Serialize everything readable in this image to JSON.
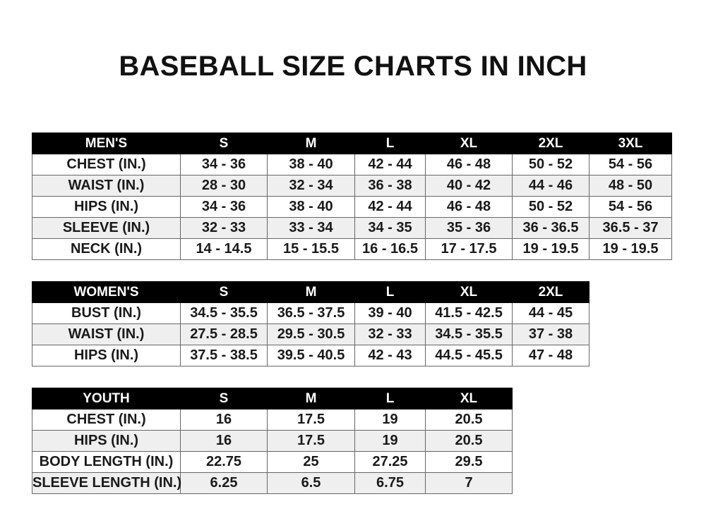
{
  "title": "BASEBALL SIZE CHARTS IN INCH",
  "tables": {
    "men": {
      "headers": [
        "MEN'S",
        "S",
        "M",
        "L",
        "XL",
        "2XL",
        "3XL"
      ],
      "rows": [
        [
          "CHEST (IN.)",
          "34 - 36",
          "38 - 40",
          "42 - 44",
          "46 - 48",
          "50 - 52",
          "54 - 56"
        ],
        [
          "WAIST (IN.)",
          "28 - 30",
          "32 - 34",
          "36 - 38",
          "40 - 42",
          "44 - 46",
          "48 - 50"
        ],
        [
          "HIPS (IN.)",
          "34 - 36",
          "38 - 40",
          "42 - 44",
          "46 - 48",
          "50 - 52",
          "54 - 56"
        ],
        [
          "SLEEVE (IN.)",
          "32 - 33",
          "33 - 34",
          "34 - 35",
          "35 - 36",
          "36 - 36.5",
          "36.5 - 37"
        ],
        [
          "NECK (IN.)",
          "14 - 14.5",
          "15 - 15.5",
          "16 - 16.5",
          "17 - 17.5",
          "19 - 19.5",
          "19 - 19.5"
        ]
      ]
    },
    "women": {
      "headers": [
        "WOMEN'S",
        "S",
        "M",
        "L",
        "XL",
        "2XL"
      ],
      "rows": [
        [
          "BUST (IN.)",
          "34.5 - 35.5",
          "36.5 - 37.5",
          "39 - 40",
          "41.5 - 42.5",
          "44 - 45"
        ],
        [
          "WAIST (IN.)",
          "27.5 - 28.5",
          "29.5 - 30.5",
          "32 - 33",
          "34.5 - 35.5",
          "37 - 38"
        ],
        [
          "HIPS (IN.)",
          "37.5 - 38.5",
          "39.5 - 40.5",
          "42 - 43",
          "44.5 - 45.5",
          "47 - 48"
        ]
      ]
    },
    "youth": {
      "headers": [
        "YOUTH",
        "S",
        "M",
        "L",
        "XL"
      ],
      "rows": [
        [
          "CHEST (IN.)",
          "16",
          "17.5",
          "19",
          "20.5"
        ],
        [
          "HIPS (IN.)",
          "16",
          "17.5",
          "19",
          "20.5"
        ],
        [
          "BODY LENGTH (IN.)",
          "22.75",
          "25",
          "27.25",
          "29.5"
        ],
        [
          "SLEEVE LENGTH (IN.)",
          "6.25",
          "6.5",
          "6.75",
          "7"
        ]
      ]
    }
  }
}
